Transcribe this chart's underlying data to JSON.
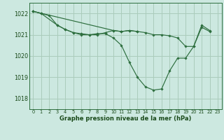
{
  "background_color": "#cce8e0",
  "grid_color": "#aaccbb",
  "line_color": "#2d6e3e",
  "text_color": "#1a4a1a",
  "xlabel": "Graphe pression niveau de la mer (hPa)",
  "ylim": [
    1017.5,
    1022.5
  ],
  "xlim": [
    -0.5,
    23.5
  ],
  "yticks": [
    1018,
    1019,
    1020,
    1021,
    1022
  ],
  "xticks": [
    0,
    1,
    2,
    3,
    4,
    5,
    6,
    7,
    8,
    9,
    10,
    11,
    12,
    13,
    14,
    15,
    16,
    17,
    18,
    19,
    20,
    21,
    22,
    23
  ],
  "series": [
    {
      "x": [
        0,
        1,
        2,
        3,
        4,
        5,
        6,
        7,
        8,
        9,
        10,
        11,
        12,
        13
      ],
      "y": [
        1022.1,
        1022.0,
        1021.9,
        1021.45,
        1021.25,
        1021.1,
        1021.0,
        1021.0,
        1021.0,
        1021.1,
        1021.2,
        1021.15,
        1021.2,
        1021.15
      ]
    },
    {
      "x": [
        0,
        1,
        3,
        4,
        5,
        6,
        7,
        8,
        9,
        10,
        11,
        12,
        13,
        14,
        15,
        16,
        17,
        18,
        19,
        20,
        21,
        22
      ],
      "y": [
        1022.1,
        1022.0,
        1021.45,
        1021.25,
        1021.1,
        1021.05,
        1021.0,
        1021.05,
        1021.05,
        1020.85,
        1020.5,
        1019.7,
        1019.0,
        1018.55,
        1018.4,
        1018.45,
        1019.3,
        1019.9,
        1019.9,
        1020.45,
        1021.45,
        1021.2
      ]
    },
    {
      "x": [
        0,
        10,
        11,
        12,
        13,
        14,
        15,
        16,
        17,
        18,
        19,
        20,
        21,
        22
      ],
      "y": [
        1022.1,
        1021.2,
        1021.15,
        1021.2,
        1021.15,
        1021.1,
        1021.0,
        1021.0,
        1020.95,
        1020.85,
        1020.45,
        1020.45,
        1021.35,
        1021.15
      ]
    }
  ]
}
